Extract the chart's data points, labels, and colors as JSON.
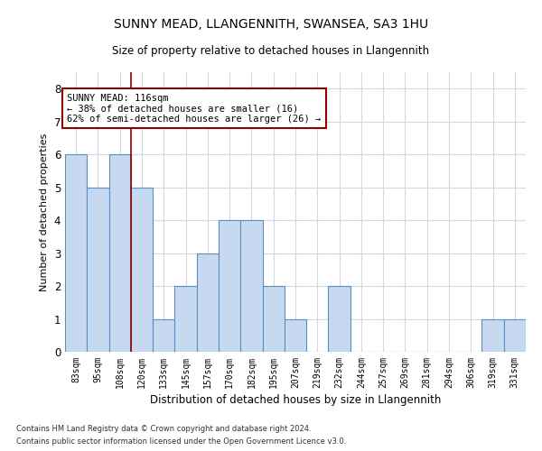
{
  "title": "SUNNY MEAD, LLANGENNITH, SWANSEA, SA3 1HU",
  "subtitle": "Size of property relative to detached houses in Llangennith",
  "xlabel": "Distribution of detached houses by size in Llangennith",
  "ylabel": "Number of detached properties",
  "footnote1": "Contains HM Land Registry data © Crown copyright and database right 2024.",
  "footnote2": "Contains public sector information licensed under the Open Government Licence v3.0.",
  "categories": [
    "83sqm",
    "95sqm",
    "108sqm",
    "120sqm",
    "133sqm",
    "145sqm",
    "157sqm",
    "170sqm",
    "182sqm",
    "195sqm",
    "207sqm",
    "219sqm",
    "232sqm",
    "244sqm",
    "257sqm",
    "269sqm",
    "281sqm",
    "294sqm",
    "306sqm",
    "319sqm",
    "331sqm"
  ],
  "values": [
    6,
    5,
    6,
    5,
    1,
    2,
    3,
    4,
    4,
    2,
    1,
    0,
    2,
    0,
    0,
    0,
    0,
    0,
    0,
    1,
    1
  ],
  "bar_color": "#c6d9f0",
  "bar_edge_color": "#5a8fc3",
  "grid_color": "#d0d8e8",
  "property_line_x": 2.5,
  "property_line_color": "#8b0000",
  "annotation_title": "SUNNY MEAD: 116sqm",
  "annotation_line1": "← 38% of detached houses are smaller (16)",
  "annotation_line2": "62% of semi-detached houses are larger (26) →",
  "annotation_box_color": "#ffffff",
  "annotation_box_edge": "#8b0000",
  "ylim": [
    0,
    8.5
  ],
  "yticks": [
    0,
    1,
    2,
    3,
    4,
    5,
    6,
    7,
    8
  ],
  "title_fontsize": 10,
  "subtitle_fontsize": 9
}
